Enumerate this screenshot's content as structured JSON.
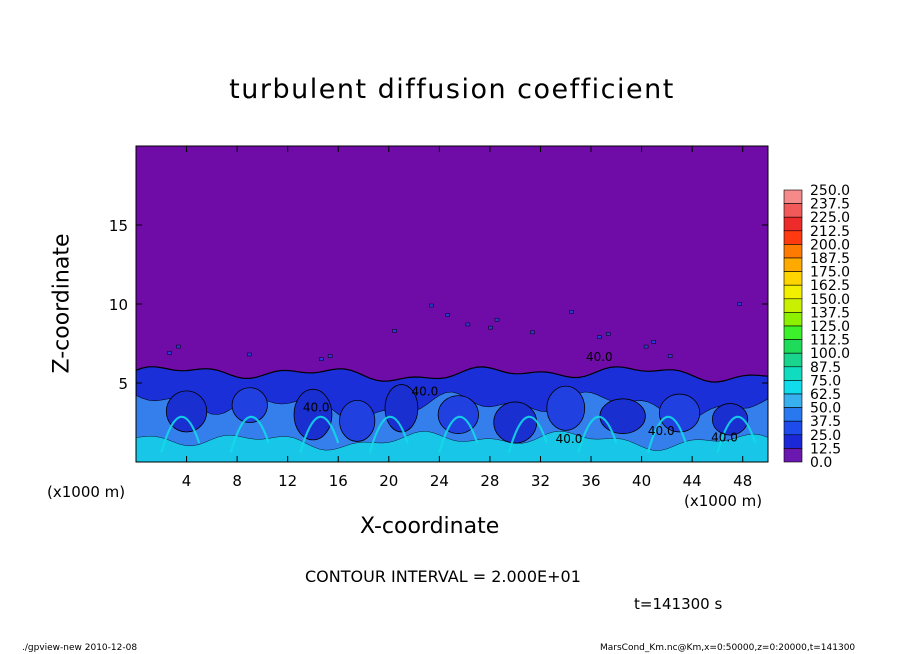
{
  "chart_data": {
    "type": "heatmap",
    "title": "turbulent diffusion coefficient",
    "xlabel": "X-coordinate",
    "ylabel": "Z-coordinate",
    "x_unit": "(x1000 m)",
    "xlim": [
      0,
      50
    ],
    "ylim": [
      0,
      20
    ],
    "x_ticks": [
      4,
      8,
      12,
      16,
      20,
      24,
      28,
      32,
      36,
      40,
      44,
      48
    ],
    "y_ticks": [
      5,
      10,
      15
    ],
    "colorbar": {
      "levels": [
        "250.0",
        "237.5",
        "225.0",
        "212.5",
        "200.0",
        "187.5",
        "175.0",
        "162.5",
        "150.0",
        "137.5",
        "125.0",
        "112.5",
        "100.0",
        "87.5",
        "75.0",
        "62.5",
        "50.0",
        "37.5",
        "25.0",
        "12.5",
        "0.0"
      ],
      "colors": [
        "#f48a8a",
        "#f25a5a",
        "#ee2b2b",
        "#ff3a10",
        "#ff7a00",
        "#ffaa00",
        "#ffd400",
        "#f2f000",
        "#c8f000",
        "#8cf000",
        "#3cf02a",
        "#1edc5a",
        "#18d48c",
        "#10dcc0",
        "#10dcec",
        "#38b0f0",
        "#2878f0",
        "#1e4cec",
        "#1a28d8",
        "#6a18b0"
      ]
    },
    "contour_labels": [
      "40.0",
      "40.0",
      "40.0",
      "40.0",
      "40.0",
      "40.0"
    ],
    "contour_interval": "CONTOUR INTERVAL = 2.000E+01",
    "time": "t=141300 s",
    "footer_left": "./gpview-new   2010-12-08",
    "footer_right": "MarsCond_Km.nc@Km,x=0:50000,z=0:20000,t=141300",
    "colors": {
      "background_field": "#6f0ba6",
      "turbulent_low": "#1b2fd8",
      "turbulent_mid": "#3a8ef0",
      "turbulent_high": "#12d9e8"
    }
  }
}
